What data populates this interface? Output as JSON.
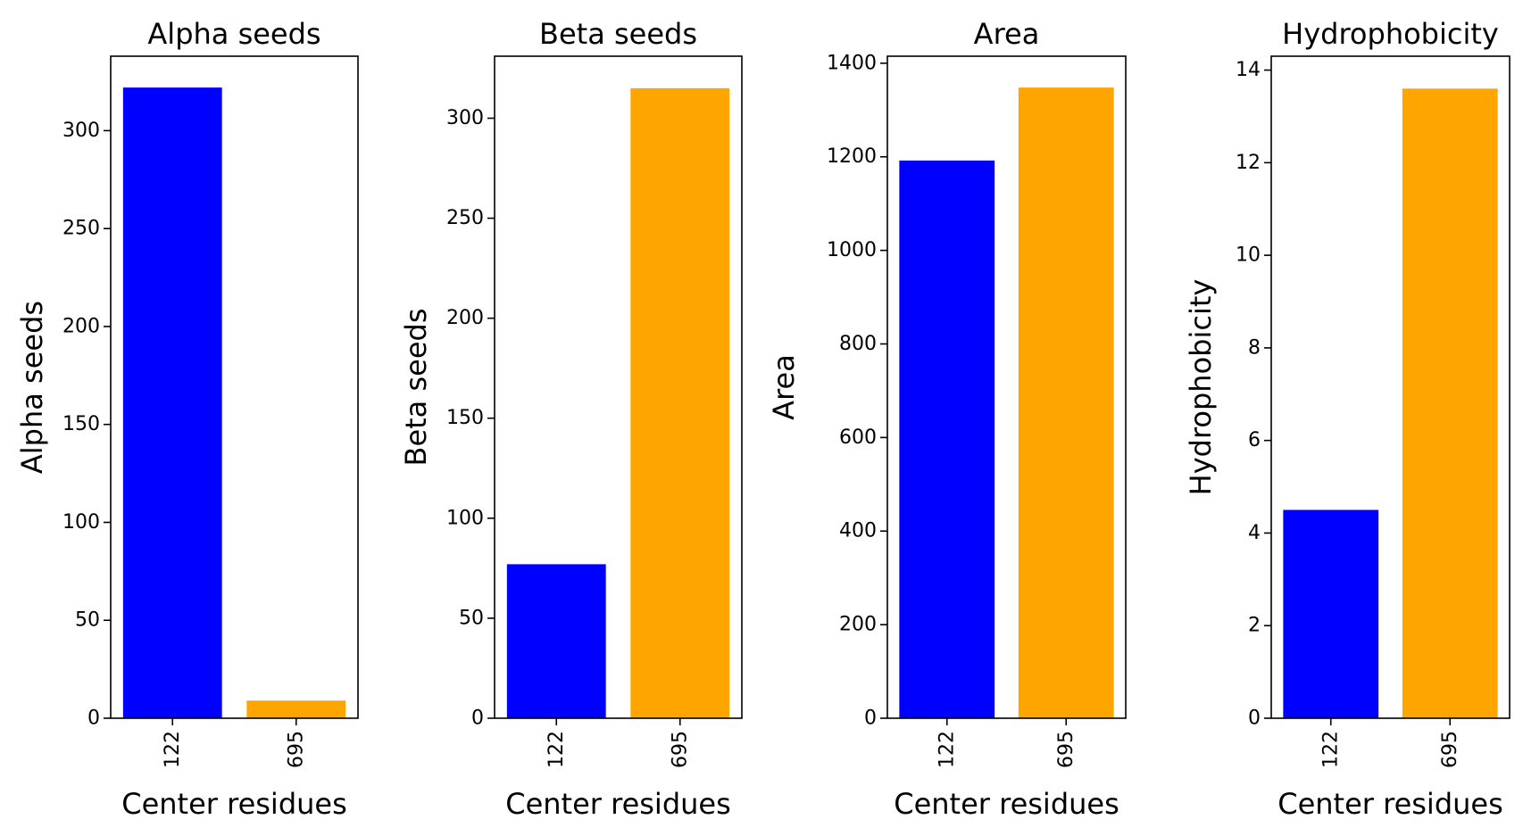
{
  "chart_data": [
    {
      "type": "bar",
      "title": "Alpha seeds",
      "xlabel": "Center residues",
      "ylabel": "Alpha seeds",
      "categories": [
        "122",
        "695"
      ],
      "values": [
        322,
        9
      ],
      "colors": [
        "#0000ff",
        "#ffa500"
      ],
      "ylim": [
        0,
        338
      ],
      "yticks": [
        0,
        50,
        100,
        150,
        200,
        250,
        300
      ],
      "grid": false
    },
    {
      "type": "bar",
      "title": "Beta seeds",
      "xlabel": "Center residues",
      "ylabel": "Beta seeds",
      "categories": [
        "122",
        "695"
      ],
      "values": [
        77,
        315
      ],
      "colors": [
        "#0000ff",
        "#ffa500"
      ],
      "ylim": [
        0,
        331
      ],
      "yticks": [
        0,
        50,
        100,
        150,
        200,
        250,
        300
      ],
      "grid": false
    },
    {
      "type": "bar",
      "title": "Area",
      "xlabel": "Center residues",
      "ylabel": "Area",
      "categories": [
        "122",
        "695"
      ],
      "values": [
        1192,
        1348
      ],
      "colors": [
        "#0000ff",
        "#ffa500"
      ],
      "ylim": [
        0,
        1415
      ],
      "yticks": [
        0,
        200,
        400,
        600,
        800,
        1000,
        1200,
        1400
      ],
      "grid": false
    },
    {
      "type": "bar",
      "title": "Hydrophobicity",
      "xlabel": "Center residues",
      "ylabel": "Hydrophobicity",
      "categories": [
        "122",
        "695"
      ],
      "values": [
        4.5,
        13.6
      ],
      "colors": [
        "#0000ff",
        "#ffa500"
      ],
      "ylim": [
        0,
        14.3
      ],
      "yticks": [
        0,
        2,
        4,
        6,
        8,
        10,
        12,
        14
      ],
      "grid": false
    }
  ]
}
